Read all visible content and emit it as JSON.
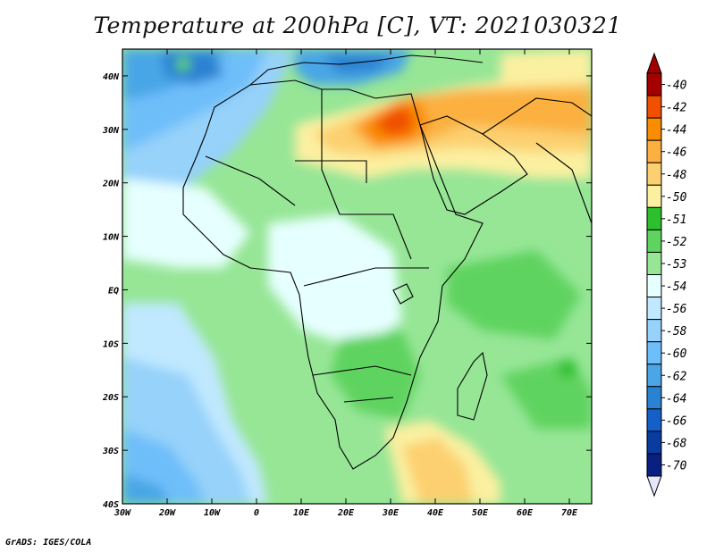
{
  "title": "Temperature at 200hPa [C], VT: 2021030321",
  "footer": "GrADS: IGES/COLA",
  "map": {
    "lon_ticks": [
      "30W",
      "20W",
      "10W",
      "0",
      "10E",
      "20E",
      "30E",
      "40E",
      "50E",
      "60E",
      "70E"
    ],
    "lat_ticks": [
      "40N",
      "30N",
      "20N",
      "10N",
      "EQ",
      "10S",
      "20S",
      "30S",
      "40S"
    ],
    "extent": {
      "lon_min": -30,
      "lon_max": 75,
      "lat_min": -40,
      "lat_max": 45
    }
  },
  "colorbar": {
    "levels": [
      "-40",
      "-42",
      "-44",
      "-46",
      "-48",
      "-50",
      "-51",
      "-52",
      "-53",
      "-54",
      "-56",
      "-58",
      "-60",
      "-62",
      "-64",
      "-66",
      "-68",
      "-70"
    ],
    "colors": [
      "#a50000",
      "#f05000",
      "#fa8c00",
      "#fbb040",
      "#fcd070",
      "#fbf0a0",
      "#2ebf2e",
      "#5fd35f",
      "#96e696",
      "#e6ffff",
      "#c0e8ff",
      "#96d2fa",
      "#6ebefa",
      "#4aa6e6",
      "#2a82d2",
      "#1460c8",
      "#0a3ca0",
      "#082080"
    ]
  }
}
